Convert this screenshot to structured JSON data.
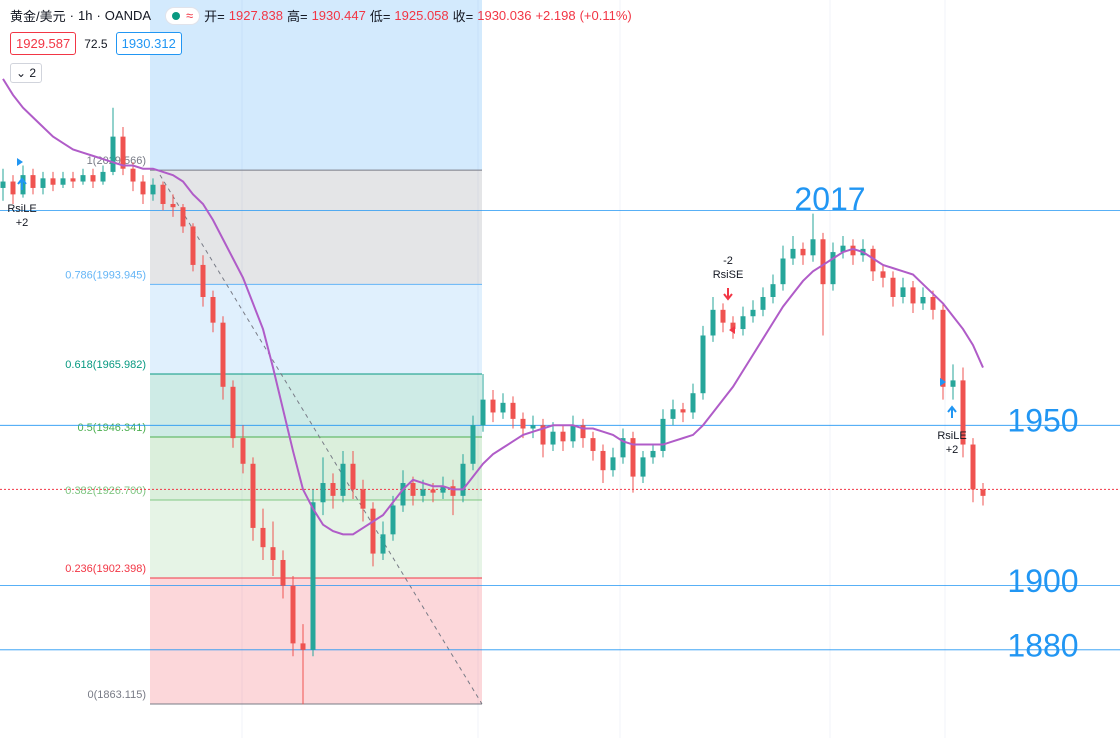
{
  "header": {
    "symbol": "黄金/美元",
    "interval": "1h",
    "source": "OANDA",
    "ohlc": [
      {
        "label": "开=",
        "value": 1927.838
      },
      {
        "label": "高=",
        "value": 1930.447
      },
      {
        "label": "低=",
        "value": 1925.058
      },
      {
        "label": "收=",
        "value": 1930.036
      }
    ],
    "change": "+2.198",
    "change_pct": "(+0.11%)"
  },
  "order_panel": {
    "sell": 1929.587,
    "spread": 72.5,
    "buy": 1930.312
  },
  "indicator_count": 2,
  "chart_data": {
    "type": "candlestick",
    "ylim": [
      1852.5,
      2082.6
    ],
    "up_color": "#26a69a",
    "down_color": "#ef5350",
    "candles": [
      [
        2024,
        2030,
        2020,
        2026
      ],
      [
        2026,
        2028,
        2019,
        2022
      ],
      [
        2022,
        2031,
        2021,
        2028
      ],
      [
        2028,
        2030,
        2022,
        2024
      ],
      [
        2024,
        2029,
        2022,
        2027
      ],
      [
        2027,
        2029,
        2023,
        2025
      ],
      [
        2025,
        2029,
        2024,
        2027
      ],
      [
        2027,
        2029,
        2024,
        2026
      ],
      [
        2026,
        2030,
        2025,
        2028
      ],
      [
        2028,
        2030,
        2024,
        2026
      ],
      [
        2026,
        2031,
        2025,
        2029
      ],
      [
        2029,
        2049,
        2028,
        2040
      ],
      [
        2040,
        2043,
        2028,
        2030
      ],
      [
        2030,
        2032,
        2023,
        2026
      ],
      [
        2026,
        2028,
        2019,
        2022
      ],
      [
        2022,
        2027,
        2020,
        2025
      ],
      [
        2025,
        2026,
        2017,
        2019
      ],
      [
        2019,
        2022,
        2015,
        2018
      ],
      [
        2018,
        2019,
        2010,
        2012
      ],
      [
        2012,
        2013,
        1998,
        2000
      ],
      [
        2000,
        2003,
        1987,
        1990
      ],
      [
        1990,
        1992,
        1979,
        1982
      ],
      [
        1982,
        1984,
        1958,
        1962
      ],
      [
        1962,
        1964,
        1943,
        1946
      ],
      [
        1946,
        1950,
        1935,
        1938
      ],
      [
        1938,
        1940,
        1914,
        1918
      ],
      [
        1918,
        1924,
        1908,
        1912
      ],
      [
        1912,
        1920,
        1903,
        1908
      ],
      [
        1908,
        1911,
        1896,
        1900
      ],
      [
        1900,
        1903,
        1878,
        1882
      ],
      [
        1882,
        1888,
        1863,
        1880
      ],
      [
        1880,
        1930,
        1878,
        1926
      ],
      [
        1926,
        1940,
        1922,
        1932
      ],
      [
        1932,
        1935,
        1924,
        1928
      ],
      [
        1928,
        1942,
        1926,
        1938
      ],
      [
        1938,
        1942,
        1927,
        1930
      ],
      [
        1930,
        1933,
        1920,
        1924
      ],
      [
        1924,
        1926,
        1906,
        1910
      ],
      [
        1910,
        1920,
        1908,
        1916
      ],
      [
        1916,
        1928,
        1914,
        1925
      ],
      [
        1925,
        1936,
        1923,
        1932
      ],
      [
        1932,
        1934,
        1925,
        1928
      ],
      [
        1928,
        1933,
        1926,
        1930
      ],
      [
        1930,
        1932,
        1926,
        1929
      ],
      [
        1929,
        1934,
        1927,
        1931
      ],
      [
        1931,
        1933,
        1922,
        1928
      ],
      [
        1928,
        1941,
        1926,
        1938
      ],
      [
        1938,
        1953,
        1936,
        1950
      ],
      [
        1950,
        1966,
        1948,
        1958
      ],
      [
        1958,
        1961,
        1951,
        1954
      ],
      [
        1954,
        1960,
        1952,
        1957
      ],
      [
        1957,
        1959,
        1949,
        1952
      ],
      [
        1952,
        1954,
        1946,
        1949
      ],
      [
        1949,
        1953,
        1946,
        1950
      ],
      [
        1950,
        1952,
        1940,
        1944
      ],
      [
        1944,
        1951,
        1942,
        1948
      ],
      [
        1948,
        1950,
        1942,
        1945
      ],
      [
        1945,
        1953,
        1943,
        1950
      ],
      [
        1950,
        1952,
        1943,
        1946
      ],
      [
        1946,
        1948,
        1939,
        1942
      ],
      [
        1942,
        1944,
        1932,
        1936
      ],
      [
        1936,
        1943,
        1934,
        1940
      ],
      [
        1940,
        1949,
        1938,
        1946
      ],
      [
        1946,
        1948,
        1929,
        1934
      ],
      [
        1934,
        1942,
        1932,
        1940
      ],
      [
        1940,
        1944,
        1938,
        1942
      ],
      [
        1942,
        1955,
        1940,
        1952
      ],
      [
        1952,
        1958,
        1950,
        1955
      ],
      [
        1955,
        1957,
        1951,
        1954
      ],
      [
        1954,
        1963,
        1952,
        1960
      ],
      [
        1960,
        1981,
        1958,
        1978
      ],
      [
        1978,
        1990,
        1976,
        1986
      ],
      [
        1986,
        1988,
        1979,
        1982
      ],
      [
        1982,
        1984,
        1977,
        1980
      ],
      [
        1980,
        1987,
        1978,
        1984
      ],
      [
        1984,
        1989,
        1982,
        1986
      ],
      [
        1986,
        1993,
        1984,
        1990
      ],
      [
        1990,
        1997,
        1988,
        1994
      ],
      [
        1994,
        2006,
        1992,
        2002
      ],
      [
        2002,
        2009,
        2000,
        2005
      ],
      [
        2005,
        2007,
        2000,
        2003
      ],
      [
        2003,
        2016,
        2001,
        2008
      ],
      [
        2008,
        2010,
        1978,
        1994
      ],
      [
        1994,
        2007,
        1992,
        2004
      ],
      [
        2004,
        2009,
        2002,
        2006
      ],
      [
        2006,
        2008,
        2000,
        2003
      ],
      [
        2003,
        2008,
        2001,
        2005
      ],
      [
        2005,
        2006,
        1995,
        1998
      ],
      [
        1998,
        2000,
        1993,
        1996
      ],
      [
        1996,
        1998,
        1987,
        1990
      ],
      [
        1990,
        1996,
        1988,
        1993
      ],
      [
        1993,
        1995,
        1985,
        1988
      ],
      [
        1988,
        1993,
        1986,
        1990
      ],
      [
        1990,
        1992,
        1983,
        1986
      ],
      [
        1986,
        1988,
        1958,
        1962
      ],
      [
        1962,
        1969,
        1958,
        1964
      ],
      [
        1964,
        1968,
        1940,
        1944
      ],
      [
        1944,
        1946,
        1926,
        1930
      ],
      [
        1930,
        1932,
        1925,
        1928
      ]
    ],
    "ma": {
      "color": "#b05cc8",
      "values": [
        2058,
        2053,
        2049,
        2046,
        2043,
        2040,
        2038,
        2036,
        2035,
        2034,
        2033,
        2032,
        2031,
        2031,
        2030,
        2030,
        2029,
        2028,
        2026,
        2022,
        2019,
        2014,
        2008,
        2002,
        1996,
        1988,
        1980,
        1968,
        1955,
        1942,
        1930,
        1924,
        1919,
        1917,
        1916,
        1916,
        1918,
        1920,
        1922,
        1926,
        1930,
        1933,
        1932,
        1931,
        1931,
        1930,
        1930,
        1934,
        1938,
        1941,
        1943,
        1945,
        1947,
        1948,
        1949,
        1950,
        1950,
        1950,
        1949,
        1949,
        1948,
        1947,
        1945,
        1944,
        1944,
        1944,
        1944,
        1945,
        1946,
        1947,
        1950,
        1954,
        1958,
        1962,
        1967,
        1972,
        1977,
        1982,
        1987,
        1991,
        1995,
        1998,
        2000,
        2002,
        2004,
        2005,
        2004,
        2002,
        2000,
        1999,
        1998,
        1997,
        1994,
        1991,
        1988,
        1984,
        1980,
        1975,
        1968
      ]
    },
    "fib": [
      {
        "value": 2029.566,
        "label": "1(2029.566)",
        "color": "#787b86"
      },
      {
        "value": 1993.945,
        "label": "0.786(1993.945)",
        "color": "#64b5f6"
      },
      {
        "value": 1965.982,
        "label": "0.618(1965.982)",
        "color": "#089981"
      },
      {
        "value": 1946.341,
        "label": "0.5(1946.341)",
        "color": "#4caf50"
      },
      {
        "value": 1926.7,
        "label": "0.382(1926.700)",
        "color": "#81c784"
      },
      {
        "value": 1902.398,
        "label": "0.236(1902.398)",
        "color": "#f23645"
      },
      {
        "value": 1863.115,
        "label": "0(1863.115)",
        "color": "#787b86"
      }
    ],
    "hlines": {
      "color": "#2196f3",
      "values": [
        2017,
        1950,
        1900,
        1880
      ]
    },
    "last_price_line": 1930.036,
    "signals": [
      {
        "name": "RsiLE",
        "qty": "+2"
      },
      {
        "name": "RsiSE",
        "qty": "-2"
      },
      {
        "name": "RsiLE",
        "qty": "+2"
      }
    ]
  }
}
